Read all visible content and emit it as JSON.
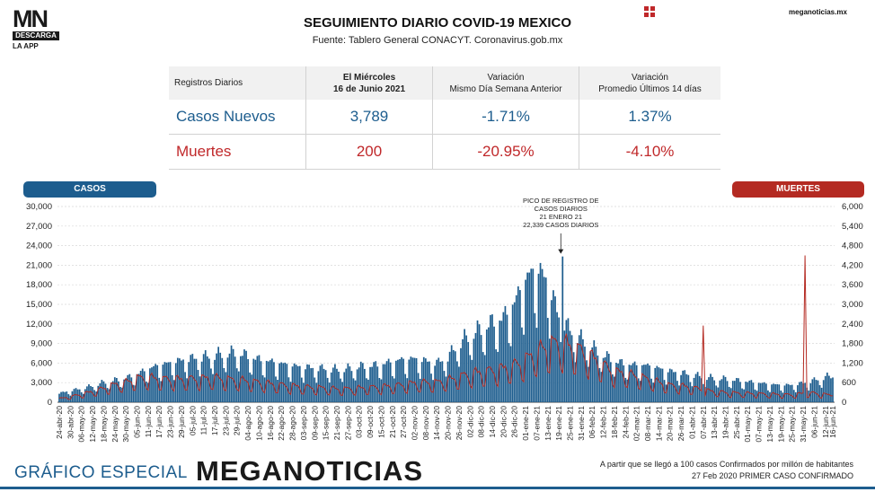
{
  "header": {
    "logo_mark": "MN",
    "logo_sub": "DESCARGA",
    "logo_app": "LA APP",
    "title": "SEGUIMIENTO DIARIO COVID-19 MEXICO",
    "source": "Fuente: Tablero General CONACYT. Coronavirus.gob.mx",
    "site": "meganoticias.mx"
  },
  "summary_table": {
    "headers": [
      "Registros Diarios",
      "El Miércoles\n16 de Junio 2021",
      "Variación\nMismo Día Semana Anterior",
      "Variación\nPromedio Últimos 14 días"
    ],
    "rows": [
      {
        "label": "Casos Nuevos",
        "value": "3,789",
        "week_var": "-1.71%",
        "avg14_var": "1.37%"
      },
      {
        "label": "Muertes",
        "value": "200",
        "week_var": "-20.95%",
        "avg14_var": "-4.10%"
      }
    ]
  },
  "colors": {
    "casos": "#1d5d8e",
    "muertes": "#b42a22",
    "accent_red": "#c0282a"
  },
  "chart_data": {
    "type": "bar",
    "series": [
      {
        "name": "CASOS",
        "axis": "left",
        "style": "bar"
      },
      {
        "name": "MUERTES",
        "axis": "right",
        "style": "line"
      }
    ],
    "left_axis": {
      "label": "CASOS",
      "ylim": [
        0,
        30000
      ],
      "ticks": [
        "0",
        "3,000",
        "6,000",
        "9,000",
        "12,000",
        "15,000",
        "18,000",
        "21,000",
        "24,000",
        "27,000",
        "30,000"
      ]
    },
    "right_axis": {
      "label": "MUERTES",
      "ylim": [
        0,
        6000
      ],
      "ticks": [
        "0",
        "600",
        "1,200",
        "1,800",
        "2,400",
        "3,000",
        "3,600",
        "4,200",
        "4,800",
        "5,400",
        "6,000"
      ]
    },
    "x_ticks": [
      "24-abr-20",
      "30-abr-20",
      "06-may-20",
      "12-may-20",
      "18-may-20",
      "24-may-20",
      "30-may-20",
      "05-jun-20",
      "11-jun-20",
      "17-jun-20",
      "23-jun-20",
      "29-jun-20",
      "05-jul-20",
      "11-jul-20",
      "17-jul-20",
      "23-jul-20",
      "29-jul-20",
      "04-ago-20",
      "10-ago-20",
      "16-ago-20",
      "22-ago-20",
      "28-ago-20",
      "03-sep-20",
      "09-sep-20",
      "15-sep-20",
      "21-sep-20",
      "27-sep-20",
      "03-oct-20",
      "09-oct-20",
      "15-oct-20",
      "21-oct-20",
      "27-oct-20",
      "02-nov-20",
      "08-nov-20",
      "14-nov-20",
      "20-nov-20",
      "26-nov-20",
      "02-dic-20",
      "08-dic-20",
      "14-dic-20",
      "20-dic-20",
      "26-dic-20",
      "01-ene-21",
      "07-ene-21",
      "13-ene-21",
      "19-ene-21",
      "25-ene-21",
      "31-ene-21",
      "06-feb-21",
      "12-feb-21",
      "18-feb-21",
      "24-feb-21",
      "02-mar-21",
      "08-mar-21",
      "14-mar-21",
      "20-mar-21",
      "26-mar-21",
      "01-abr-21",
      "07-abr-21",
      "13-abr-21",
      "19-abr-21",
      "25-abr-21",
      "01-may-21",
      "07-may-21",
      "13-may-21",
      "19-may-21",
      "25-may-21",
      "31-may-21",
      "06-jun-21",
      "12-jun-21",
      "16-jun-21"
    ],
    "casos_weekly_profile": [
      1300,
      1700,
      2000,
      2400,
      2900,
      3200,
      3500,
      4100,
      4800,
      5400,
      5700,
      6100,
      6400,
      6600,
      6900,
      7100,
      7300,
      6700,
      6200,
      5900,
      5600,
      5300,
      5100,
      5000,
      4900,
      4800,
      4900,
      5200,
      5300,
      5500,
      5900,
      6200,
      6300,
      6000,
      5700,
      6600,
      8600,
      9800,
      10700,
      11600,
      12300,
      14500,
      17800,
      19500,
      17500,
      12500,
      10500,
      9200,
      8000,
      6900,
      6000,
      5500,
      5400,
      5300,
      4900,
      4500,
      4300,
      4000,
      3700,
      3500,
      3400,
      3200,
      3000,
      2800,
      2600,
      2500,
      2500,
      2800,
      3200,
      3700,
      3900
    ],
    "muertes_weekly_profile": [
      100,
      160,
      230,
      300,
      400,
      500,
      560,
      680,
      690,
      660,
      650,
      640,
      660,
      670,
      690,
      650,
      630,
      600,
      560,
      520,
      490,
      460,
      430,
      420,
      400,
      380,
      380,
      400,
      420,
      440,
      460,
      500,
      540,
      560,
      560,
      620,
      720,
      800,
      850,
      900,
      950,
      1050,
      1200,
      1400,
      1620,
      1660,
      1580,
      1450,
      1250,
      1050,
      850,
      800,
      750,
      650,
      560,
      480,
      460,
      420,
      350,
      300,
      280,
      260,
      250,
      240,
      230,
      220,
      210,
      250,
      260,
      220,
      200
    ],
    "notable_spikes": [
      {
        "date": "07-abr-21",
        "muertes": 2350
      },
      {
        "date": "01-jun-21",
        "muertes": 4500
      }
    ],
    "last_point": {
      "date": "16-jun-21",
      "casos": 3789,
      "muertes": 200
    },
    "annotation": {
      "lines": [
        "PICO DE REGISTRO DE",
        "CASOS DIARIOS",
        "21 ENERO 21",
        "22,339 CASOS DIARIOS"
      ],
      "date": "21-ene-21",
      "value": 22339
    },
    "grid": true
  },
  "footer": {
    "left": "GRÁFICO ESPECIAL",
    "brand": "MEGANOTICIAS",
    "note1": "A partir que se llegó a 100 casos Confirmados por millón de habitantes",
    "note2": "27 Feb 2020 PRIMER CASO CONFIRMADO"
  }
}
